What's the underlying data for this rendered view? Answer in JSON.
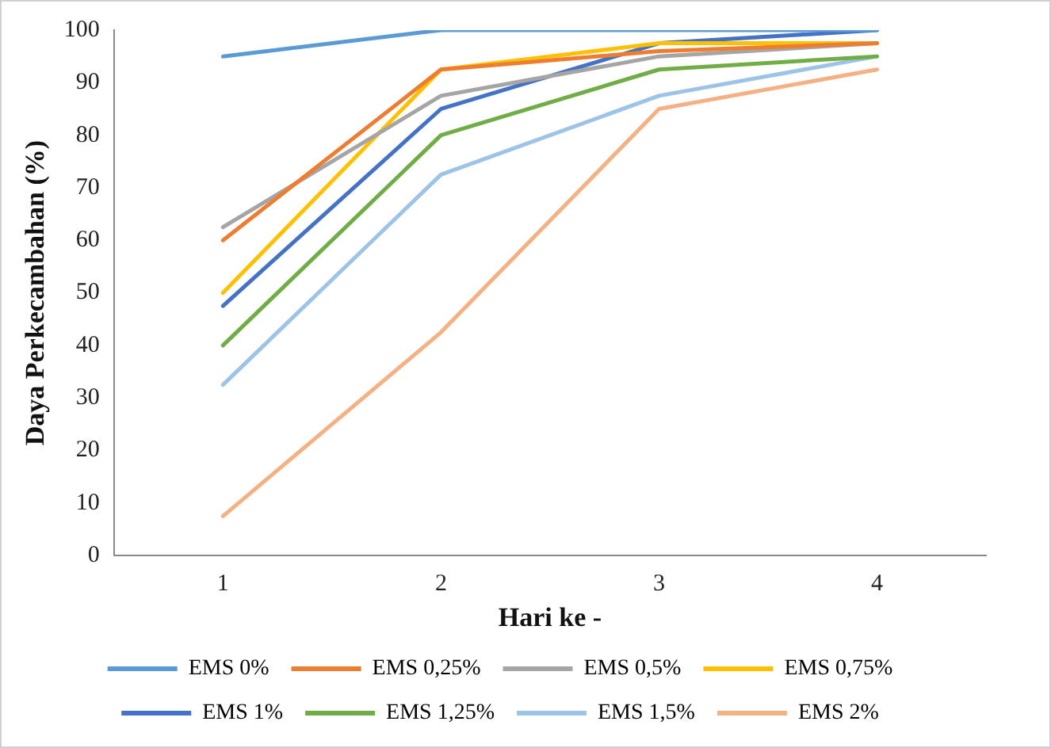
{
  "chart_data": {
    "type": "line",
    "xlabel": "Hari ke -",
    "ylabel": "Daya Perkecambahan (%)",
    "categories": [
      "1",
      "2",
      "3",
      "4"
    ],
    "ylim": [
      0,
      100
    ],
    "yticks": [
      0,
      10,
      20,
      30,
      40,
      50,
      60,
      70,
      80,
      90,
      100
    ],
    "grid": false,
    "legend": "bottom",
    "marker": "none",
    "line_style": "solid",
    "series": [
      {
        "name": "EMS 0%",
        "color": "#5b9bd5",
        "values": [
          95,
          100,
          100,
          100
        ]
      },
      {
        "name": "EMS 0,25%",
        "color": "#ed7d31",
        "values": [
          60,
          92.5,
          96,
          97.5
        ]
      },
      {
        "name": "EMS 0,5%",
        "color": "#a5a5a5",
        "values": [
          62.5,
          87.5,
          95,
          97.5
        ]
      },
      {
        "name": "EMS 0,75%",
        "color": "#ffc000",
        "values": [
          50,
          92.5,
          97.5,
          97.5
        ]
      },
      {
        "name": "EMS 1%",
        "color": "#4472c4",
        "values": [
          47.5,
          85,
          97.5,
          100
        ]
      },
      {
        "name": "EMS 1,25%",
        "color": "#70ad47",
        "values": [
          40,
          80,
          92.5,
          95
        ]
      },
      {
        "name": "EMS 1,5%",
        "color": "#9dc3e6",
        "values": [
          32.5,
          72.5,
          87.5,
          95
        ]
      },
      {
        "name": "EMS 2%",
        "color": "#f4b183",
        "values": [
          7.5,
          42.5,
          85,
          92.5
        ]
      }
    ]
  }
}
